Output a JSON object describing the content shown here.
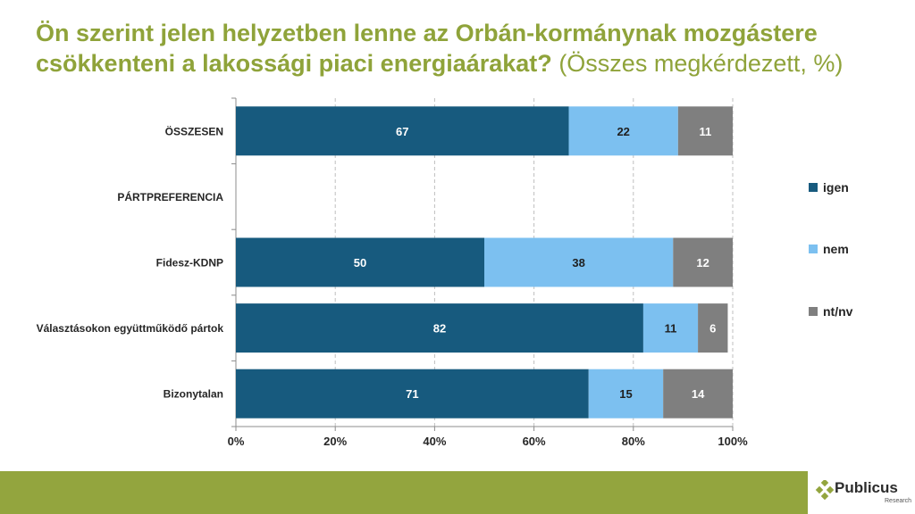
{
  "title": {
    "bold": "Ön szerint jelen helyzetben lenne az Orbán-kormánynak mozgástere csökkenteni a lakossági piaci energiaárakat?",
    "normal": "(Összes megkérdezett, %)"
  },
  "colors": {
    "igen": "#175a7e",
    "nem": "#7cc0f0",
    "ntnv": "#7f7f7f",
    "brand": "#93a53e",
    "title": "#8fa33a"
  },
  "chart_data": {
    "type": "bar",
    "orientation": "horizontal",
    "stacked": true,
    "categories": [
      "ÖSSZESEN",
      "PÁRTPREFERENCIA",
      "Fidesz-KDNP",
      "Választásokon együttműködő pártok",
      "Bizonytalan"
    ],
    "series": [
      {
        "name": "igen",
        "values": [
          67,
          null,
          50,
          82,
          71
        ]
      },
      {
        "name": "nem",
        "values": [
          22,
          null,
          38,
          11,
          15
        ]
      },
      {
        "name": "nt/nv",
        "values": [
          11,
          null,
          12,
          6,
          14
        ]
      }
    ],
    "xlim": [
      0,
      100
    ],
    "xticks": [
      "0%",
      "20%",
      "40%",
      "60%",
      "80%",
      "100%"
    ],
    "grid": "vertical dashed",
    "legend": "right"
  },
  "footer": {
    "logo": "Publicus",
    "logo_sub": "Research"
  }
}
